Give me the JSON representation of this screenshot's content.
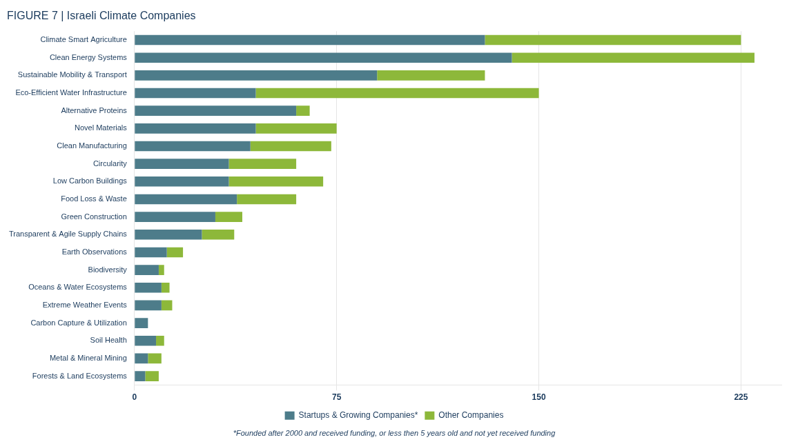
{
  "chart_data": {
    "type": "bar",
    "orientation": "horizontal",
    "stacked": true,
    "title": "FIGURE 7 | Israeli Climate Companies",
    "annotations": [
      "*Founded after 2000 and received funding, or less then 5 years old and not yet received funding"
    ],
    "categories": [
      "Climate Smart Agriculture",
      "Clean Energy Systems",
      "Sustainable Mobility & Transport",
      "Eco-Efficient Water Infrastructure",
      "Alternative Proteins",
      "Novel Materials",
      "Clean Manufacturing",
      "Circularity",
      "Low Carbon Buildings",
      "Food Loss & Waste",
      "Green Construction",
      "Transparent & Agile Supply Chains",
      "Earth Observations",
      "Biodiversity",
      "Oceans & Water Ecosystems",
      "Extreme Weather Events",
      "Carbon Capture & Utilization",
      "Soil Health",
      "Metal & Mineral Mining",
      "Forests & Land Ecosystems"
    ],
    "series": [
      {
        "name": "Startups & Growing Companies*",
        "color": "#4d7c8a",
        "values": [
          130,
          140,
          90,
          45,
          60,
          45,
          43,
          35,
          35,
          38,
          30,
          25,
          12,
          9,
          10,
          10,
          5,
          8,
          5,
          4
        ]
      },
      {
        "name": "Other Companies",
        "color": "#8db83a",
        "values": [
          95,
          90,
          40,
          105,
          5,
          30,
          30,
          25,
          35,
          22,
          10,
          12,
          6,
          2,
          3,
          4,
          0,
          3,
          5,
          5
        ]
      }
    ],
    "xlim": [
      0,
      240
    ],
    "xticks": [
      0,
      75,
      150,
      225
    ],
    "grid": true,
    "legend": "bottom"
  }
}
